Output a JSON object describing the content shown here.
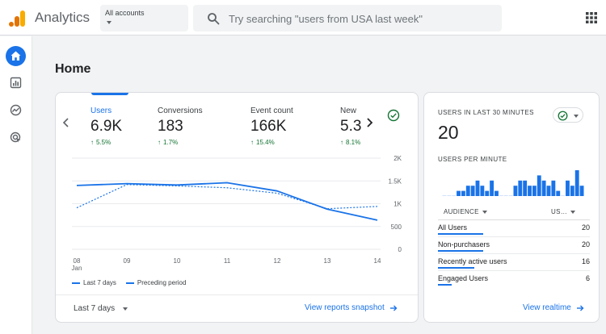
{
  "app": {
    "title": "Analytics",
    "brand_color": "#f9ab00",
    "accent_color": "#1a73e8"
  },
  "account": {
    "label": "All accounts"
  },
  "search": {
    "placeholder": "Try searching \"users from USA last week\""
  },
  "nav": [
    {
      "name": "home",
      "icon": "home-icon",
      "active": true
    },
    {
      "name": "reports",
      "icon": "bar-chart-icon"
    },
    {
      "name": "explore",
      "icon": "explore-icon"
    },
    {
      "name": "advertising",
      "icon": "target-icon"
    }
  ],
  "page": {
    "title": "Home"
  },
  "overview": {
    "metrics": [
      {
        "name": "Users",
        "value": "6.9K",
        "delta": "5.5%"
      },
      {
        "name": "Conversions",
        "value": "183",
        "delta": "1.7%"
      },
      {
        "name": "Event count",
        "value": "166K",
        "delta": "15.4%"
      },
      {
        "name": "New",
        "value": "5.3",
        "delta": "8.1%"
      }
    ],
    "legend": {
      "current": "Last 7 days",
      "previous": "Preceding period"
    },
    "range_select": "Last 7 days",
    "link": "View reports snapshot"
  },
  "chart_data": {
    "type": "line",
    "x": [
      "08",
      "09",
      "10",
      "11",
      "12",
      "13",
      "14"
    ],
    "x_sublabel": "Jan",
    "y_ticks": [
      "2K",
      "1.5K",
      "1K",
      "500",
      "0"
    ],
    "ylim": [
      0,
      2000
    ],
    "grid": true,
    "series": [
      {
        "name": "Last 7 days",
        "style": "solid",
        "values": [
          1400,
          1440,
          1410,
          1460,
          1280,
          880,
          640
        ]
      },
      {
        "name": "Preceding period",
        "style": "dashed",
        "values": [
          910,
          1420,
          1390,
          1350,
          1230,
          890,
          940
        ]
      }
    ]
  },
  "realtime": {
    "heading": "USERS IN LAST 30 MINUTES",
    "value": "20",
    "per_minute_label": "USERS PER MINUTE",
    "per_minute_values": [
      0,
      0,
      0,
      1,
      1,
      2,
      2,
      3,
      2,
      1,
      3,
      1,
      0,
      0,
      0,
      2,
      3,
      3,
      2,
      2,
      4,
      3,
      2,
      3,
      1,
      0,
      3,
      2,
      5,
      2
    ],
    "table": {
      "col_dimension": "AUDIENCE",
      "col_metric": "US…",
      "rows": [
        {
          "label": "All Users",
          "value": "20"
        },
        {
          "label": "Non-purchasers",
          "value": "20"
        },
        {
          "label": "Recently active users",
          "value": "16"
        },
        {
          "label": "Engaged Users",
          "value": "6"
        }
      ]
    },
    "link": "View realtime"
  }
}
